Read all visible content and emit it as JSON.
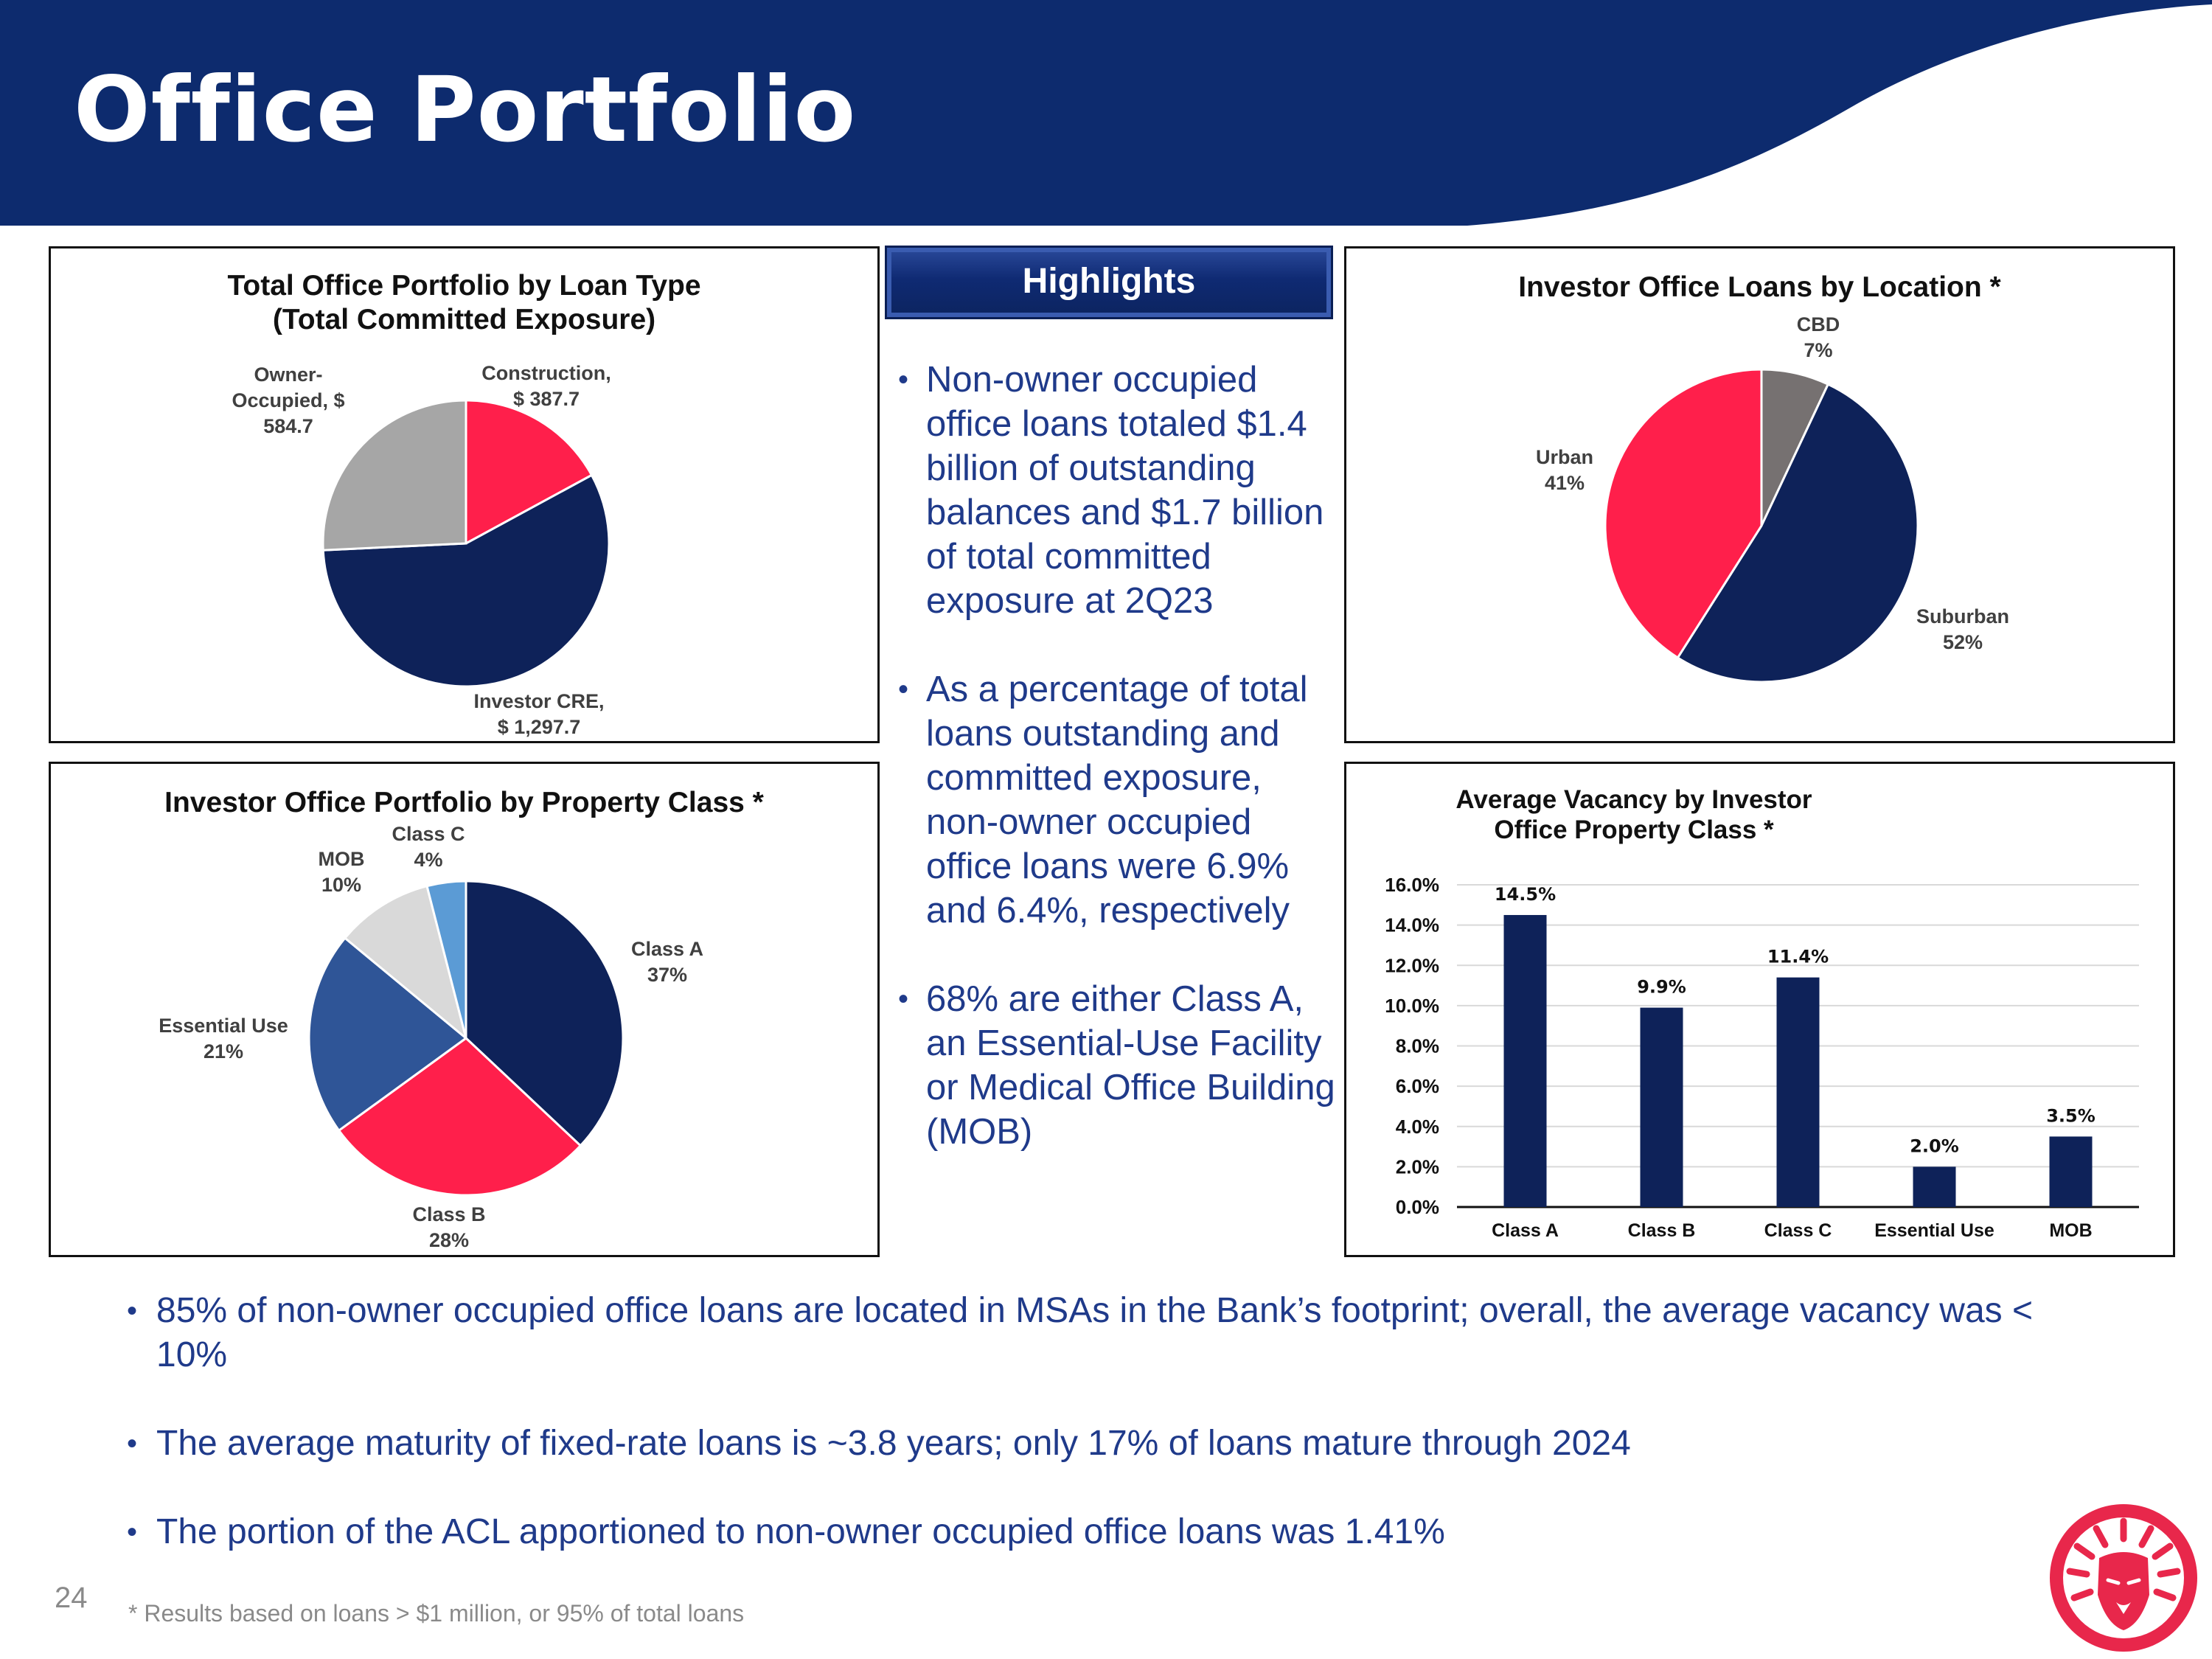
{
  "page": {
    "title": "Office Portfolio",
    "page_number": "24",
    "footnote": "* Results based on loans > $1 million, or 95% of total loans",
    "colors": {
      "navy": "#0e2a6e",
      "red": "#ff1f4b"
    }
  },
  "highlights": {
    "header": "Highlights",
    "bullets": [
      "Non-owner occupied office loans totaled $1.4 billion of outstanding balances and $1.7 billion of total committed exposure at 2Q23",
      "As a percentage of total loans outstanding and committed exposure, non-owner occupied office loans were 6.9% and 6.4%, respectively",
      "68% are either Class A, an Essential-Use Facility or Medical Office Building (MOB)"
    ]
  },
  "bottom_bullets": [
    "85% of non-owner occupied office loans are located in MSAs in the Bank’s footprint; overall, the average vacancy was < 10%",
    "The average maturity of fixed-rate loans is ~3.8 years; only 17% of loans mature through 2024",
    "The portion of the ACL apportioned to non-owner occupied office loans was 1.41%"
  ],
  "chart_data": [
    {
      "type": "pie",
      "title": "Total Office Portfolio by Loan Type",
      "subtitle": "(Total Committed Exposure)",
      "slices": [
        {
          "name": "Construction",
          "value": 387.7,
          "label_lines": [
            "Construction,",
            "$ 387.7"
          ],
          "color": "#ff1f4b"
        },
        {
          "name": "Investor CRE",
          "value": 1297.7,
          "label_lines": [
            "Investor CRE,",
            "$ 1,297.7"
          ],
          "color": "#0e2259"
        },
        {
          "name": "Owner-Occupied",
          "value": 584.7,
          "label_lines": [
            "Owner-",
            "Occupied, $",
            "584.7"
          ],
          "color": "#a6a6a6"
        }
      ]
    },
    {
      "type": "pie",
      "title": "Investor Office Loans by Location *",
      "slices": [
        {
          "name": "CBD",
          "value": 7,
          "label_lines": [
            "CBD",
            "7%"
          ],
          "color": "#767171"
        },
        {
          "name": "Suburban",
          "value": 52,
          "label_lines": [
            "Suburban",
            "52%"
          ],
          "color": "#0e2259"
        },
        {
          "name": "Urban",
          "value": 41,
          "label_lines": [
            "Urban",
            "41%"
          ],
          "color": "#ff1f4b"
        }
      ]
    },
    {
      "type": "pie",
      "title": "Investor Office Portfolio by Property Class *",
      "slices": [
        {
          "name": "Class A",
          "value": 37,
          "label_lines": [
            "Class A",
            "37%"
          ],
          "color": "#0e2259"
        },
        {
          "name": "Class B",
          "value": 28,
          "label_lines": [
            "Class B",
            "28%"
          ],
          "color": "#ff1f4b"
        },
        {
          "name": "Essential Use",
          "value": 21,
          "label_lines": [
            "Essential Use",
            "21%"
          ],
          "color": "#2f5597"
        },
        {
          "name": "MOB",
          "value": 10,
          "label_lines": [
            "MOB",
            "10%"
          ],
          "color": "#d9d9d9"
        },
        {
          "name": "Class C",
          "value": 4,
          "label_lines": [
            "Class C",
            "4%"
          ],
          "color": "#5b9bd5"
        }
      ]
    },
    {
      "type": "bar",
      "title": "Average Vacancy by Investor Office Property Class *",
      "categories": [
        "Class A",
        "Class B",
        "Class C",
        "Essential Use",
        "MOB"
      ],
      "values": [
        14.5,
        9.9,
        11.4,
        2.0,
        3.5
      ],
      "value_labels": [
        "14.5%",
        "9.9%",
        "11.4%",
        "2.0%",
        "3.5%"
      ],
      "ylim": [
        0,
        16
      ],
      "yticks": [
        "0.0%",
        "2.0%",
        "4.0%",
        "6.0%",
        "8.0%",
        "10.0%",
        "12.0%",
        "14.0%",
        "16.0%"
      ],
      "bar_color": "#0e2259",
      "grid": true
    }
  ]
}
